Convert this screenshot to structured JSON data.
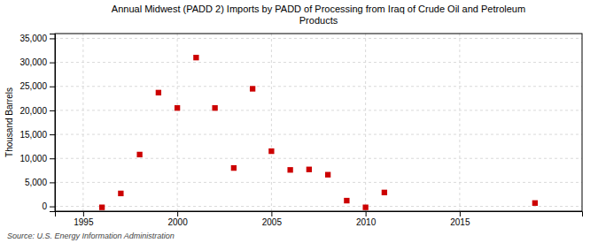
{
  "chart_data": {
    "type": "scatter",
    "title": "Annual Midwest (PADD 2) Imports by PADD of Processing from Iraq of Crude Oil and Petroleum\nProducts",
    "ylabel": "Thousand Barrels",
    "annotations": [
      "Source: U.S. Energy Information Administration"
    ],
    "x": [
      1996,
      1997,
      1998,
      1999,
      2000,
      2001,
      2002,
      2003,
      2004,
      2005,
      2006,
      2007,
      2008,
      2009,
      2010,
      2011,
      2019
    ],
    "values": [
      -200,
      2700,
      10800,
      23700,
      20500,
      31000,
      20500,
      8000,
      24500,
      11500,
      7600,
      7700,
      6600,
      1200,
      -200,
      2900,
      700
    ],
    "color": "#cc0000",
    "marker": "square",
    "xlim": [
      1993.5,
      2021.5
    ],
    "xticks": [
      1995,
      2000,
      2005,
      2010,
      2015
    ],
    "ylim": [
      -1000,
      36000
    ],
    "yticks": [
      0,
      {
        "value": 5000,
        "label": "5,000"
      },
      {
        "value": 10000,
        "label": "10,000"
      },
      {
        "value": 15000,
        "label": "15,000"
      },
      {
        "value": 20000,
        "label": "20,000"
      },
      {
        "value": 25000,
        "label": "25,000"
      },
      {
        "value": 30000,
        "label": "30,000"
      },
      {
        "value": 35000,
        "label": "35,000"
      }
    ],
    "grid": true
  }
}
